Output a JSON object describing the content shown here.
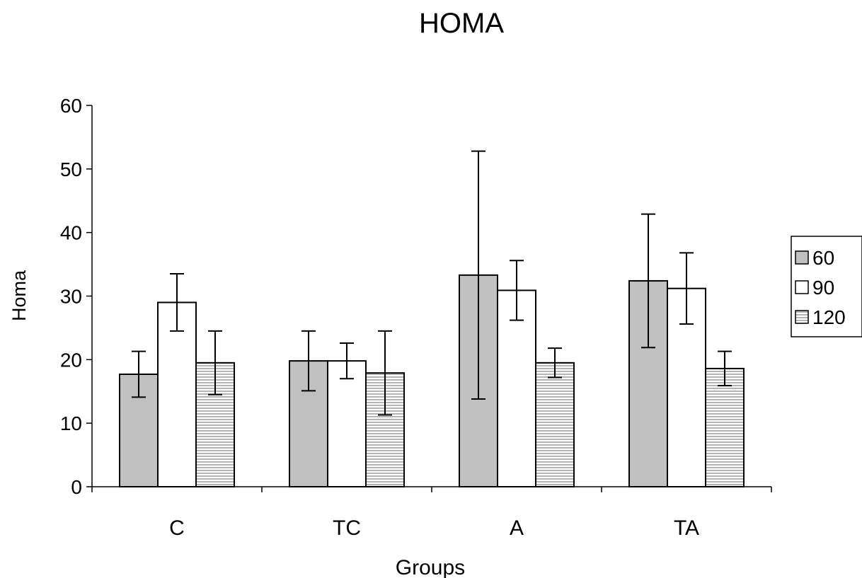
{
  "chart_data": {
    "type": "bar",
    "title": "HOMA",
    "xlabel": "Groups",
    "ylabel": "Homa",
    "ylim": [
      0,
      60
    ],
    "yticks": [
      0,
      10,
      20,
      30,
      40,
      50,
      60
    ],
    "categories": [
      "C",
      "TC",
      "A",
      "TA"
    ],
    "grid": false,
    "legend_position": "right",
    "series": [
      {
        "name": "60",
        "values": [
          17.7,
          19.8,
          33.3,
          32.4
        ],
        "error": [
          3.6,
          4.7,
          19.5,
          10.5
        ],
        "fill": "#c0c0c0",
        "pattern": "solid"
      },
      {
        "name": "90",
        "values": [
          29.0,
          19.8,
          30.9,
          31.2
        ],
        "error": [
          4.5,
          2.8,
          4.7,
          5.6
        ],
        "fill": "#ffffff",
        "pattern": "solid"
      },
      {
        "name": "120",
        "values": [
          19.5,
          17.9,
          19.5,
          18.6
        ],
        "error": [
          5.0,
          6.6,
          2.3,
          2.7
        ],
        "fill": "#d8d8d8",
        "pattern": "horizontal-stripes"
      }
    ]
  }
}
